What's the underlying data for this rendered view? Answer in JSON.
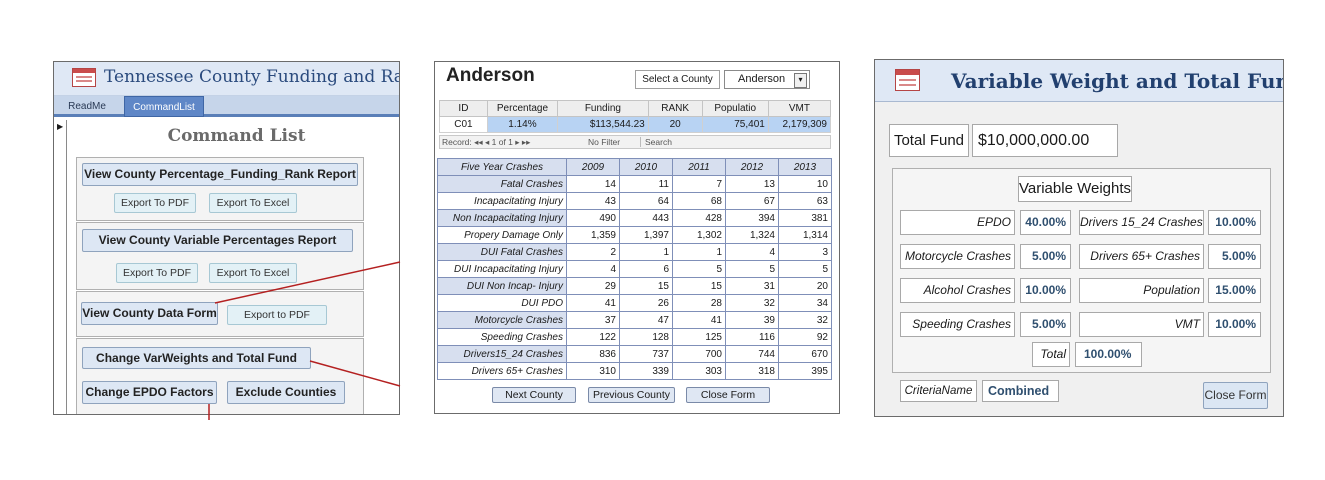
{
  "panel1": {
    "title": "Tennessee County Funding and Ranking",
    "tabs": [
      "ReadMe",
      "CommandList"
    ],
    "record_selector": "▶",
    "heading": "Command List",
    "btn_percentage_report": "View County Percentage_Funding_Rank Report",
    "btn_export_pdf_1": "Export To PDF",
    "btn_export_excel_1": "Export To Excel",
    "btn_variable_report": "View County Variable Percentages Report",
    "btn_export_pdf_2": "Export To PDF",
    "btn_export_excel_2": "Export To Excel",
    "btn_data_form": "View County Data Form",
    "btn_export_pdf_3": "Export to PDF",
    "btn_change_weights": "Change VarWeights and Total Fund",
    "btn_change_epdo": "Change EPDO Factors",
    "btn_exclude": "Exclude Counties",
    "accent_color": "#5f87c7",
    "connector_color": "#b42020"
  },
  "panel2": {
    "county_name": "Anderson",
    "select_label": "Select a County",
    "select_value": "Anderson",
    "datasheet_headers": [
      "ID",
      "Percentage",
      "Funding",
      "RANK",
      "Populatio",
      "VMT"
    ],
    "datasheet_row": [
      "C01",
      "1.14%",
      "$113,544.23",
      "20",
      "75,401",
      "2,179,309"
    ],
    "nav_record": "Record: ◂◂  ◂  1 of 1   ▸  ▸▸",
    "nav_filter": "No Filter",
    "nav_search": "Search",
    "crash_header": [
      "Five Year Crashes",
      "2009",
      "2010",
      "2011",
      "2012",
      "2013"
    ],
    "crash_rows": [
      [
        "Fatal Crashes",
        "14",
        "11",
        "7",
        "13",
        "10"
      ],
      [
        "Incapacitating Injury",
        "43",
        "64",
        "68",
        "67",
        "63"
      ],
      [
        "Non Incapacitating Injury",
        "490",
        "443",
        "428",
        "394",
        "381"
      ],
      [
        "Propery Damage Only",
        "1,359",
        "1,397",
        "1,302",
        "1,324",
        "1,314"
      ],
      [
        "DUI Fatal Crashes",
        "2",
        "1",
        "1",
        "4",
        "3"
      ],
      [
        "DUI Incapacitating Injury",
        "4",
        "6",
        "5",
        "5",
        "5"
      ],
      [
        "DUI Non Incap- Injury",
        "29",
        "15",
        "15",
        "31",
        "20"
      ],
      [
        "DUI PDO",
        "41",
        "26",
        "28",
        "32",
        "34"
      ],
      [
        "Motorcycle Crashes",
        "37",
        "47",
        "41",
        "39",
        "32"
      ],
      [
        "Speeding Crashes",
        "122",
        "128",
        "125",
        "116",
        "92"
      ],
      [
        "Drivers15_24 Crashes",
        "836",
        "737",
        "700",
        "744",
        "670"
      ],
      [
        "Drivers 65+ Crashes",
        "310",
        "339",
        "303",
        "318",
        "395"
      ]
    ],
    "btn_next": "Next County",
    "btn_previous": "Previous County",
    "btn_close": "Close Form"
  },
  "panel3": {
    "title": "Variable Weight and Total Fund",
    "total_fund_label": "Total Fund",
    "total_fund_value": "$10,000,000.00",
    "weights_title": "Variable Weights",
    "weights": [
      {
        "label": "EPDO",
        "value": "40.00%"
      },
      {
        "label": "Drivers 15_24 Crashes",
        "value": "10.00%"
      },
      {
        "label": "Motorcycle Crashes",
        "value": "5.00%"
      },
      {
        "label": "Drivers 65+ Crashes",
        "value": "5.00%"
      },
      {
        "label": "Alcohol Crashes",
        "value": "10.00%"
      },
      {
        "label": "Population",
        "value": "15.00%"
      },
      {
        "label": "Speeding Crashes",
        "value": "5.00%"
      },
      {
        "label": "VMT",
        "value": "10.00%"
      }
    ],
    "total_label": "Total",
    "total_value": "100.00%",
    "criteria_label": "CriteriaName",
    "criteria_value": "Combined",
    "btn_close": "Close Form"
  }
}
